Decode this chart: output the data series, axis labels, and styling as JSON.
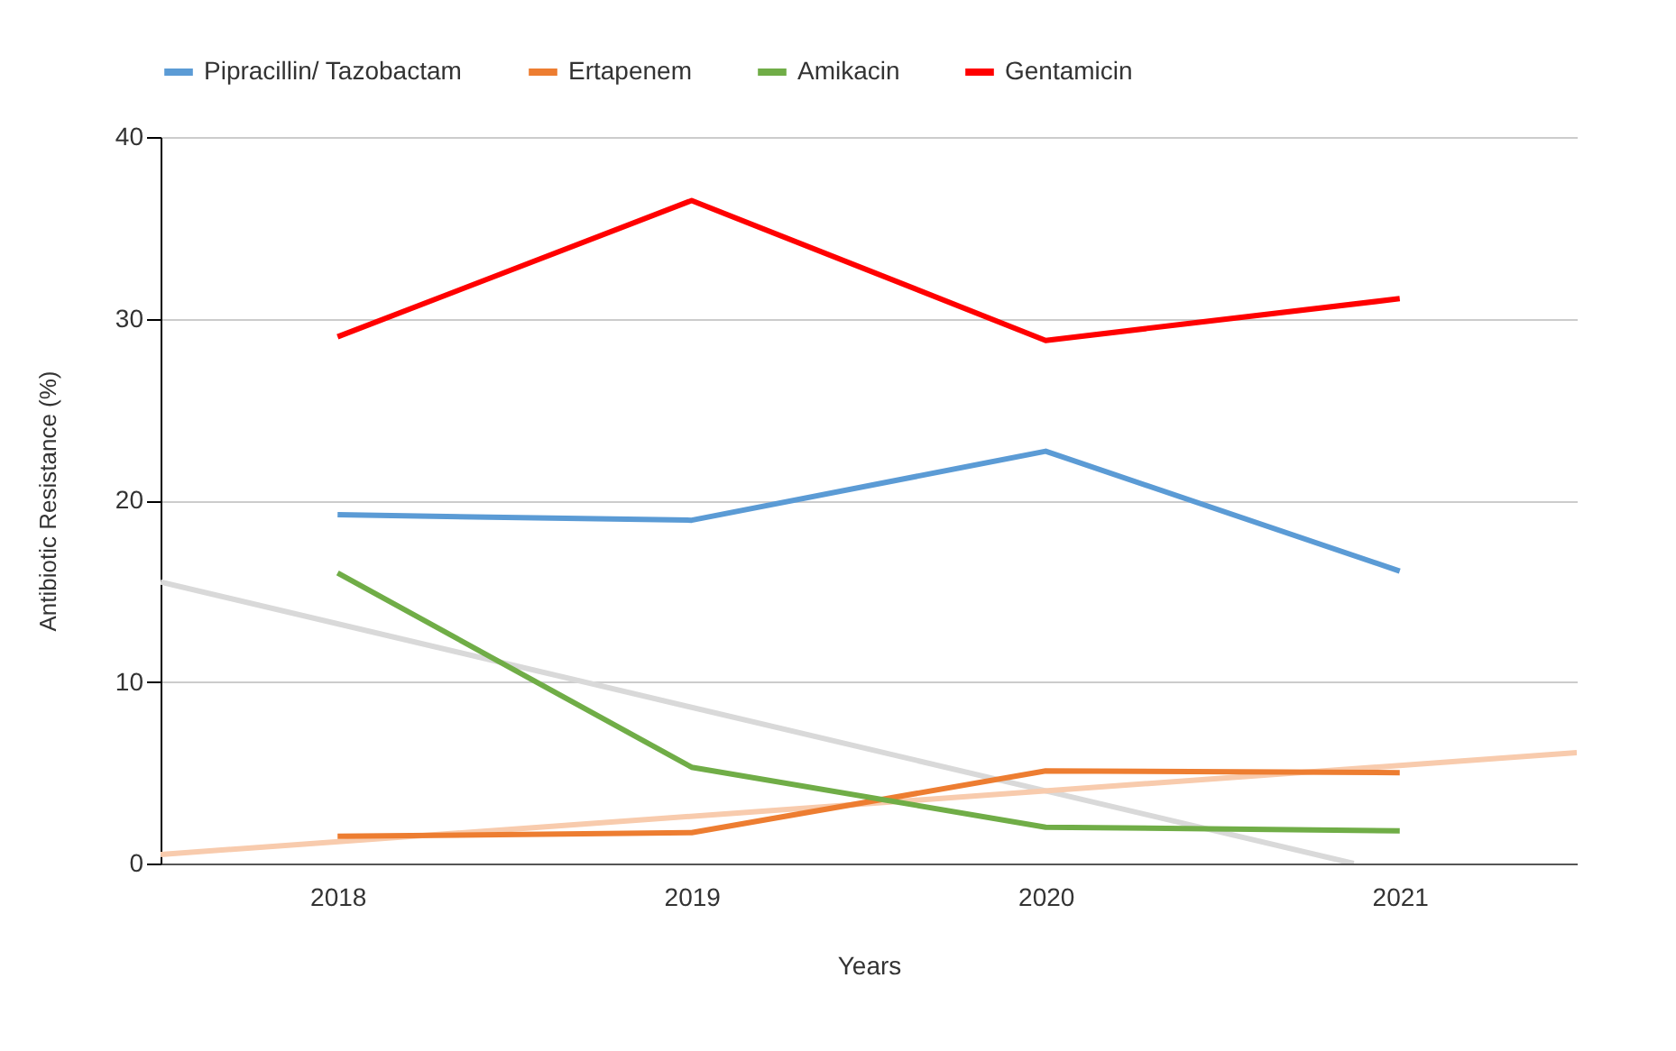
{
  "chart_data": {
    "type": "line",
    "xlabel": "Years",
    "ylabel": "Antibiotic Resistance (%)",
    "x": [
      2018,
      2019,
      2020,
      2021
    ],
    "series": [
      {
        "name": "Pipracillin/ Tazobactam",
        "color": "#5b9bd5",
        "values": [
          19.2,
          18.9,
          22.7,
          16.1
        ]
      },
      {
        "name": "Ertapenem",
        "color": "#ed7d31",
        "values": [
          1.5,
          1.7,
          5.1,
          5.0
        ]
      },
      {
        "name": "Amikacin",
        "color": "#70ad47",
        "values": [
          16.0,
          5.3,
          2.0,
          1.8
        ]
      },
      {
        "name": "Gentamicin",
        "color": "#ff0000",
        "values": [
          29.0,
          36.5,
          28.8,
          31.1
        ]
      },
      {
        "type": "line",
        "color": "#d9d9d9",
        "x": [
          2017.5,
          2020.87
        ],
        "values": [
          15.5,
          0
        ]
      },
      {
        "type": "line",
        "color": "#f8cbad",
        "x": [
          2017.5,
          2021.5
        ],
        "values": [
          0.5,
          6.1
        ]
      }
    ],
    "xlim": [
      2017.5,
      2021.5
    ],
    "xticks": [
      2018,
      2019,
      2020,
      2021
    ],
    "ylim": [
      0,
      40
    ],
    "yticks": [
      0,
      10,
      20,
      30,
      40
    ],
    "grid": "y",
    "legend": "top",
    "marker": "none",
    "line_style": "solid"
  }
}
